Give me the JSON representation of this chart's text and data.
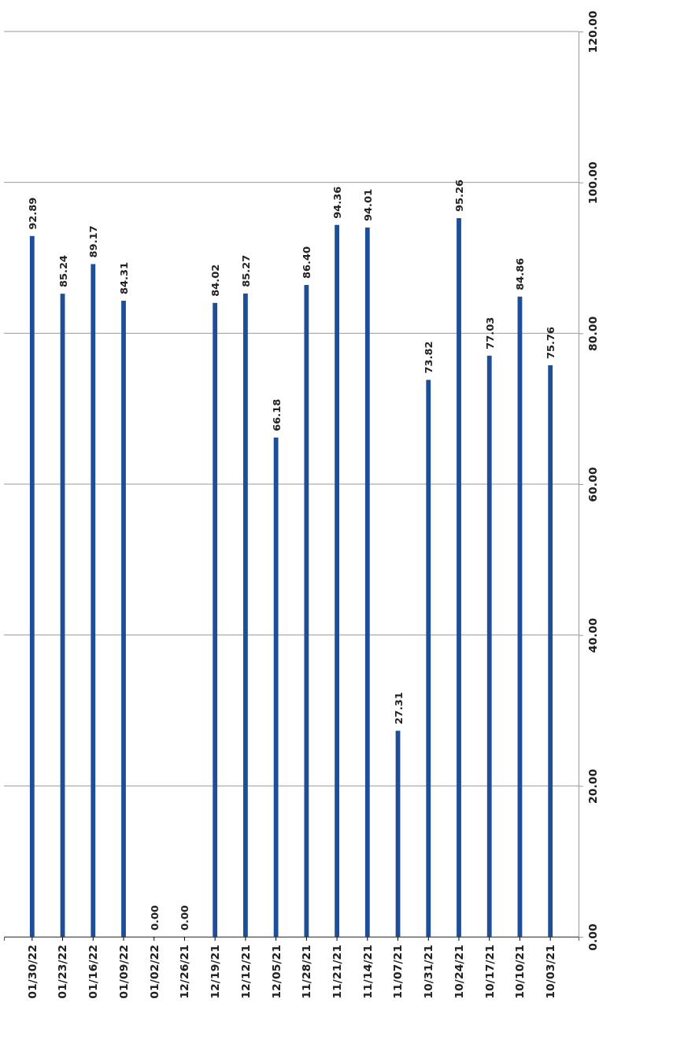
{
  "chart_data": {
    "type": "bar",
    "categories": [
      "01/30/22",
      "01/23/22",
      "01/16/22",
      "01/09/22",
      "01/02/22",
      "12/26/21",
      "12/19/21",
      "12/12/21",
      "12/05/21",
      "11/28/21",
      "11/21/21",
      "11/14/21",
      "11/07/21",
      "10/31/21",
      "10/24/21",
      "10/17/21",
      "10/10/21",
      "10/03/21"
    ],
    "values": [
      92.89,
      85.24,
      89.17,
      84.31,
      0,
      0,
      84.02,
      85.27,
      66.18,
      86.4,
      94.36,
      94.01,
      27.31,
      73.82,
      95.26,
      77.03,
      84.86,
      75.76
    ],
    "value_labels": [
      "92.89",
      "85.24",
      "89.17",
      "84.31",
      "0.00",
      "0.00",
      "84.02",
      "85.27",
      "66.18",
      "86.40",
      "94.36",
      "94.01",
      "27.31",
      "73.82",
      "95.26",
      "77.03",
      "84.86",
      "75.76"
    ],
    "color": "#1f4e99",
    "ylim": [
      0,
      120
    ],
    "yticks": [
      {
        "value": 0,
        "label": "0.00"
      },
      {
        "value": 20,
        "label": "20.00"
      },
      {
        "value": 40,
        "label": "40.00"
      },
      {
        "value": 60,
        "label": "60.00"
      },
      {
        "value": 80,
        "label": "80.00"
      },
      {
        "value": 100,
        "label": "100.00"
      },
      {
        "value": 120,
        "label": "120.00"
      }
    ],
    "grid": "y"
  }
}
